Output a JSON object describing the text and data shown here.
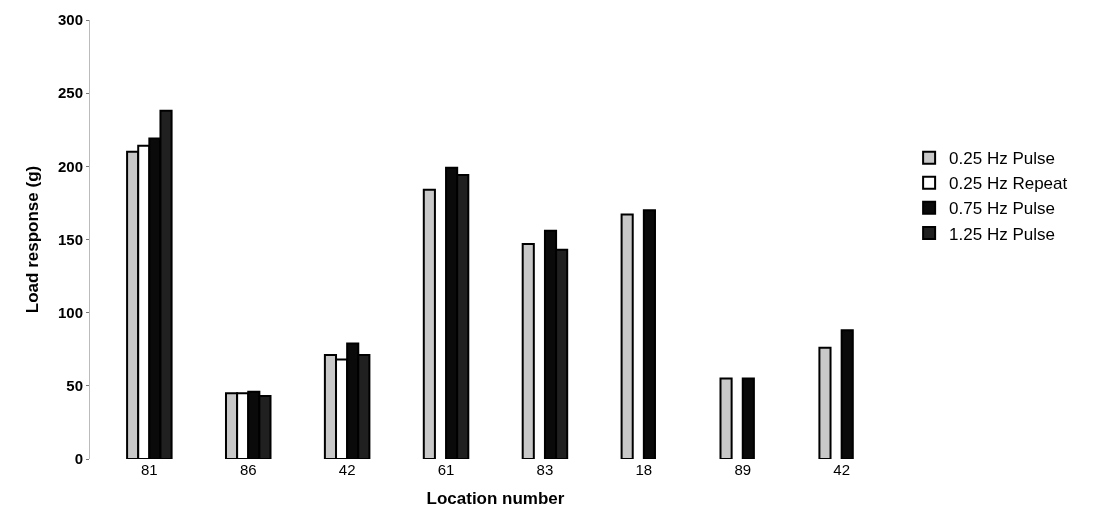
{
  "chart_data": {
    "type": "bar",
    "xlabel": "Location number",
    "ylabel": "Load response (g)",
    "categories": [
      "81",
      "86",
      "42",
      "61",
      "83",
      "18",
      "89",
      "42"
    ],
    "series": [
      {
        "name": "0.25 Hz Pulse",
        "color": "#c8c8c8",
        "values": [
          210,
          45,
          71,
          184,
          147,
          167,
          55,
          76
        ]
      },
      {
        "name": "0.25 Hz Repeat",
        "color": "#ffffff",
        "values": [
          214,
          45,
          68,
          null,
          null,
          null,
          null,
          null
        ]
      },
      {
        "name": "0.75 Hz Pulse",
        "color": "#0a0a0a",
        "values": [
          219,
          46,
          79,
          199,
          156,
          170,
          55,
          88
        ]
      },
      {
        "name": "1.25 Hz Pulse",
        "color": "#202020",
        "values": [
          238,
          43,
          71,
          194,
          143,
          null,
          null,
          null
        ]
      }
    ],
    "ylim": [
      0,
      300
    ],
    "yticks": [
      0,
      50,
      100,
      150,
      200,
      250,
      300
    ],
    "legend": "right"
  }
}
